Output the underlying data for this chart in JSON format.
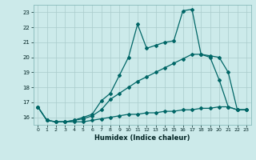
{
  "xlabel": "Humidex (Indice chaleur)",
  "bg_color": "#cceaea",
  "line_color": "#006666",
  "grid_color": "#aacccc",
  "xlim": [
    -0.5,
    23.5
  ],
  "ylim": [
    15.5,
    23.5
  ],
  "yticks": [
    16,
    17,
    18,
    19,
    20,
    21,
    22,
    23
  ],
  "xticks": [
    0,
    1,
    2,
    3,
    4,
    5,
    6,
    7,
    8,
    9,
    10,
    11,
    12,
    13,
    14,
    15,
    16,
    17,
    18,
    19,
    20,
    21,
    22,
    23
  ],
  "line1_x": [
    0,
    1,
    2,
    3,
    4,
    5,
    6,
    7,
    8,
    9,
    10,
    11,
    12,
    13,
    14,
    15,
    16,
    17,
    18,
    19,
    20,
    21,
    22,
    23
  ],
  "line1_y": [
    16.7,
    15.8,
    15.7,
    15.7,
    15.7,
    15.7,
    15.8,
    15.9,
    16.0,
    16.1,
    16.2,
    16.2,
    16.3,
    16.3,
    16.4,
    16.4,
    16.5,
    16.5,
    16.6,
    16.6,
    16.7,
    16.7,
    16.5,
    16.5
  ],
  "line2_x": [
    0,
    1,
    2,
    3,
    4,
    5,
    6,
    7,
    8,
    9,
    10,
    11,
    12,
    13,
    14,
    15,
    16,
    17,
    18,
    19,
    20,
    21,
    22,
    23
  ],
  "line2_y": [
    16.7,
    15.8,
    15.7,
    15.7,
    15.8,
    15.9,
    16.1,
    16.5,
    17.2,
    17.6,
    18.0,
    18.4,
    18.7,
    19.0,
    19.3,
    19.6,
    19.9,
    20.2,
    20.2,
    20.1,
    20.0,
    19.0,
    16.5,
    16.5
  ],
  "line3_x": [
    0,
    1,
    2,
    3,
    4,
    5,
    6,
    7,
    8,
    9,
    10,
    11,
    12,
    13,
    14,
    15,
    16,
    17,
    18,
    19,
    20,
    21,
    22,
    23
  ],
  "line3_y": [
    16.7,
    15.8,
    15.7,
    15.7,
    15.8,
    16.0,
    16.2,
    17.1,
    17.6,
    18.8,
    20.0,
    22.2,
    20.6,
    20.8,
    21.0,
    21.1,
    23.1,
    23.2,
    20.2,
    20.0,
    18.5,
    16.7,
    16.5,
    16.5
  ]
}
